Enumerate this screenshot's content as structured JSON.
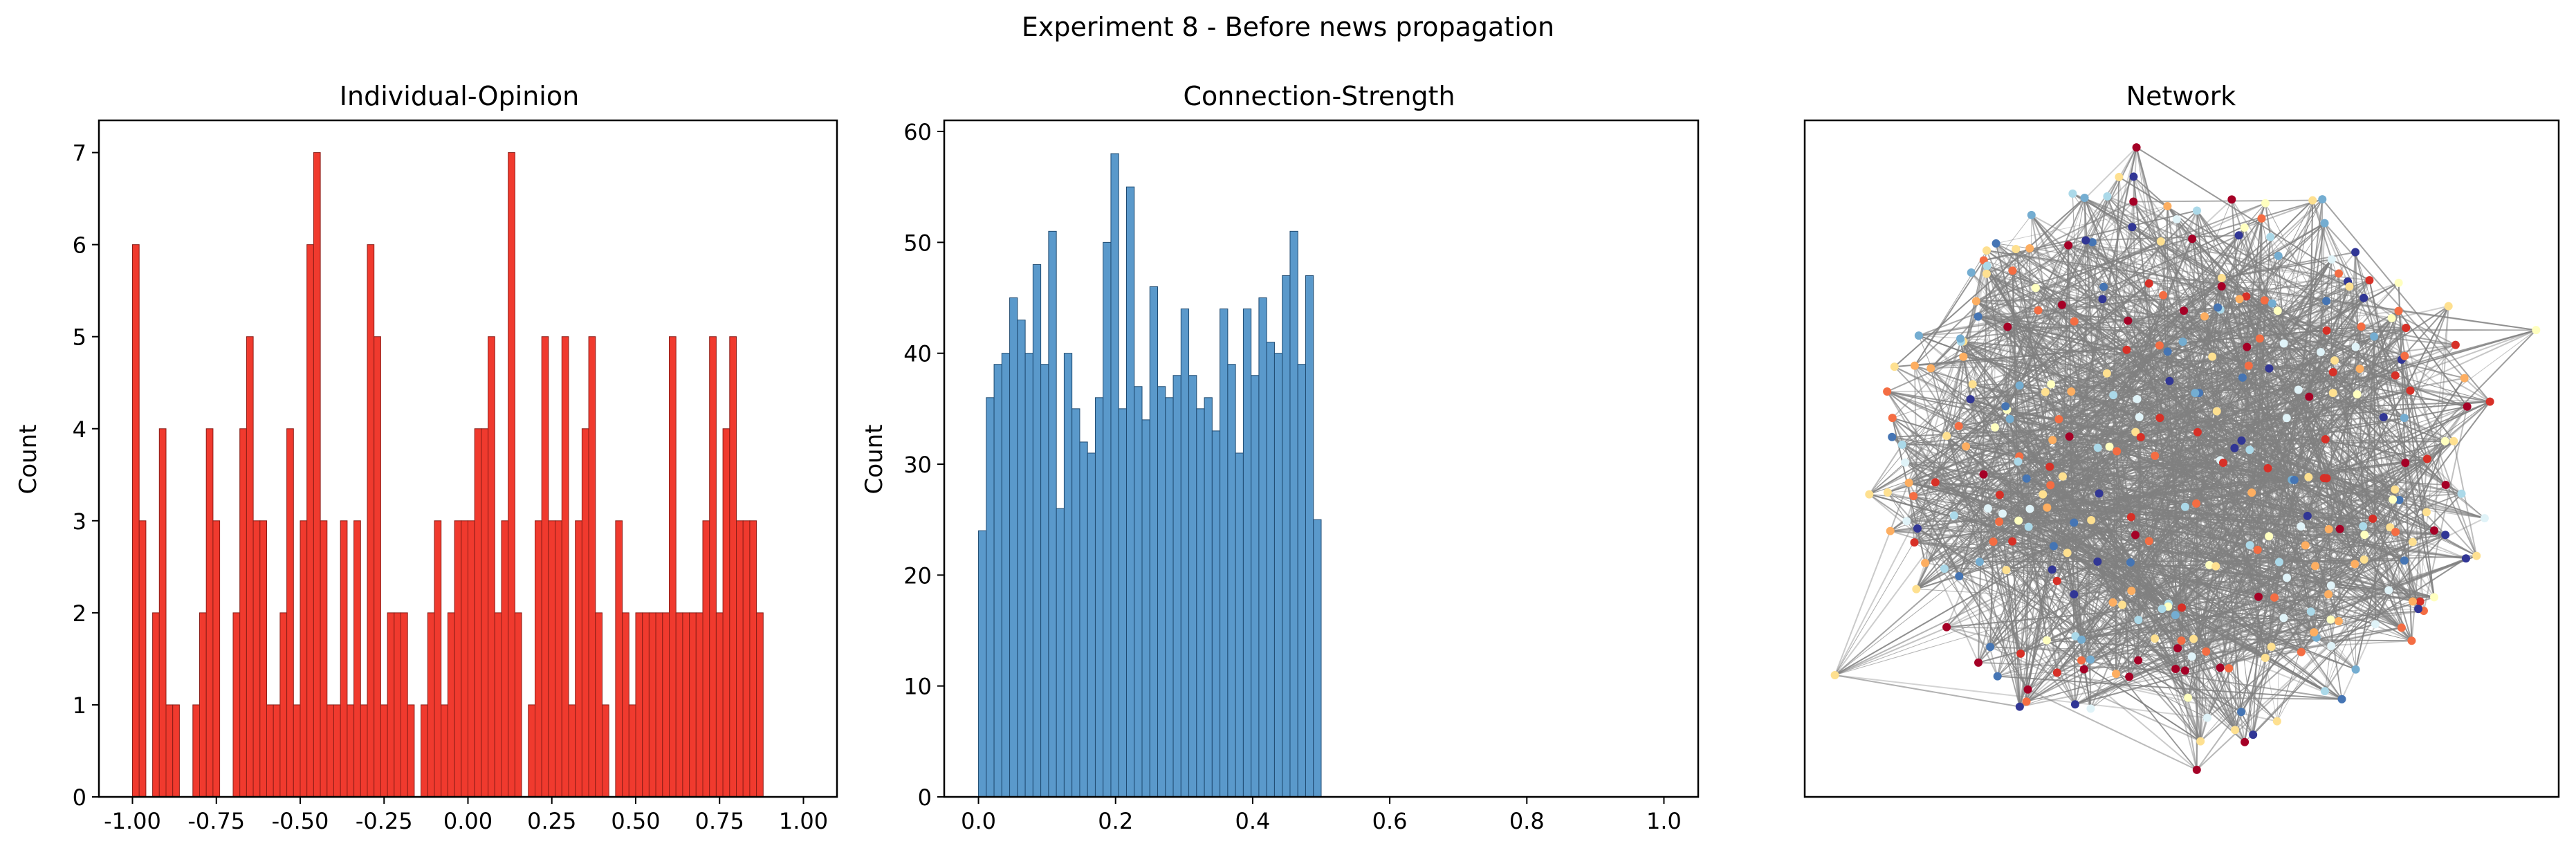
{
  "figure": {
    "suptitle": "Experiment 8 - Before news propagation"
  },
  "chart_data": [
    {
      "type": "bar",
      "title": "Individual-Opinion",
      "xlabel": "",
      "ylabel": "Count",
      "xlim": [
        -1.1,
        1.1
      ],
      "ylim": [
        0,
        7.35
      ],
      "xticks": [
        "-1.00",
        "-0.75",
        "-0.50",
        "-0.25",
        "0.00",
        "0.25",
        "0.50",
        "0.75",
        "1.00"
      ],
      "yticks": [
        "0",
        "1",
        "2",
        "3",
        "4",
        "5",
        "6",
        "7"
      ],
      "bin_range": [
        -1.0,
        1.0
      ],
      "values": [
        6,
        3,
        0,
        2,
        4,
        1,
        1,
        0,
        0,
        1,
        2,
        4,
        3,
        0,
        0,
        2,
        4,
        5,
        3,
        3,
        1,
        1,
        2,
        4,
        1,
        3,
        6,
        7,
        3,
        1,
        1,
        3,
        1,
        3,
        1,
        6,
        5,
        1,
        2,
        2,
        2,
        1,
        0,
        1,
        2,
        3,
        1,
        2,
        3,
        3,
        3,
        4,
        4,
        5,
        2,
        3,
        7,
        2,
        0,
        1,
        3,
        5,
        3,
        3,
        5,
        1,
        3,
        4,
        5,
        2,
        1,
        0,
        3,
        2,
        1,
        2,
        2,
        2,
        2,
        2,
        5,
        2,
        2,
        2,
        2,
        3,
        5,
        2,
        4,
        5,
        3,
        3,
        3,
        2,
        0,
        0,
        0,
        0,
        0,
        0
      ],
      "bar_color": "#f03a2e",
      "edge_color": "#8b1d17"
    },
    {
      "type": "bar",
      "title": "Connection-Strength",
      "xlabel": "",
      "ylabel": "Count",
      "xlim": [
        -0.05,
        1.05
      ],
      "ylim": [
        0,
        61
      ],
      "xticks": [
        "0.0",
        "0.2",
        "0.4",
        "0.6",
        "0.8",
        "1.0"
      ],
      "yticks": [
        "0",
        "10",
        "20",
        "30",
        "40",
        "50",
        "60"
      ],
      "bin_range": [
        0.0,
        0.5
      ],
      "values": [
        24,
        36,
        39,
        40,
        45,
        43,
        40,
        48,
        39,
        51,
        26,
        40,
        35,
        32,
        31,
        36,
        50,
        58,
        35,
        55,
        37,
        34,
        46,
        37,
        36,
        38,
        44,
        38,
        35,
        36,
        33,
        44,
        39,
        31,
        44,
        38,
        45,
        41,
        40,
        47,
        51,
        39,
        47,
        25
      ],
      "bar_color": "#5a99cb",
      "edge_color": "#1f4a70"
    },
    {
      "type": "network",
      "title": "Network",
      "node_colors": [
        "#a50026",
        "#d73027",
        "#f46d43",
        "#fdae61",
        "#fee090",
        "#ffffbf",
        "#e0f3f8",
        "#abd9e9",
        "#74add1",
        "#4575b4",
        "#313695"
      ],
      "edge_color": "#808080"
    }
  ]
}
